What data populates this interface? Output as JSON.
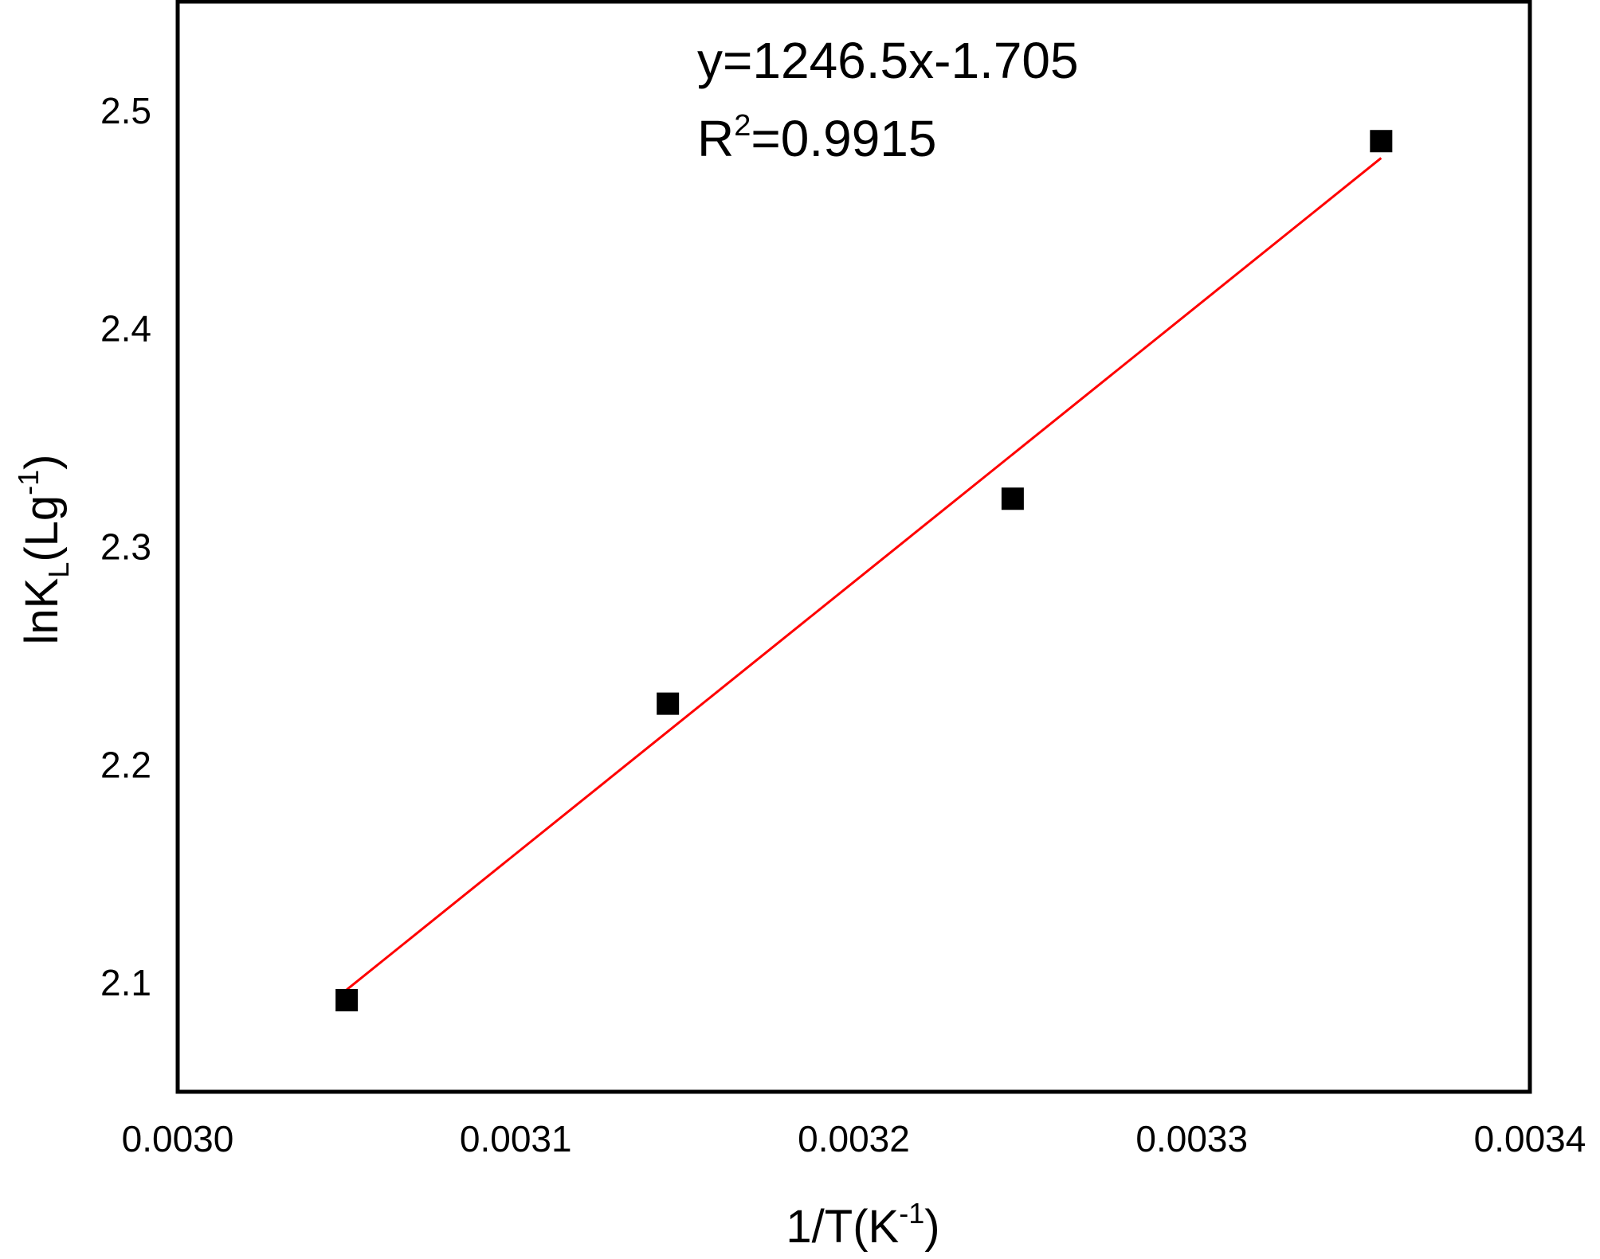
{
  "chart_data": {
    "type": "scatter",
    "xlabel": "1/T(K",
    "xlabel_sup": "-1",
    "xlabel_end": ")",
    "ylabel": "lnK",
    "ylabel_sub": "L",
    "ylabel_mid": "(Lg",
    "ylabel_sup": "-1",
    "ylabel_end": ")",
    "xlim": [
      0.003,
      0.0034
    ],
    "ylim": [
      2.05,
      2.55
    ],
    "xticks": [
      "0.0030",
      "0.0031",
      "0.0032",
      "0.0033",
      "0.0034"
    ],
    "yticks": [
      "2.1",
      "2.2",
      "2.3",
      "2.4",
      "2.5"
    ],
    "grid": false,
    "series": [
      {
        "marker": "square",
        "color": "#000000",
        "x": [
          0.00305,
          0.003145,
          0.003247,
          0.003356
        ],
        "y": [
          2.092,
          2.228,
          2.322,
          2.486
        ]
      }
    ],
    "fit_line": {
      "color": "#ff0000",
      "slope": 1246.5,
      "intercept": -1.705,
      "x_range": [
        0.00305,
        0.003356
      ]
    },
    "annotations": {
      "equation": "y=1246.5x-1.705",
      "r2_prefix": "R",
      "r2_sup": "2",
      "r2_value": "=0.9915"
    }
  }
}
